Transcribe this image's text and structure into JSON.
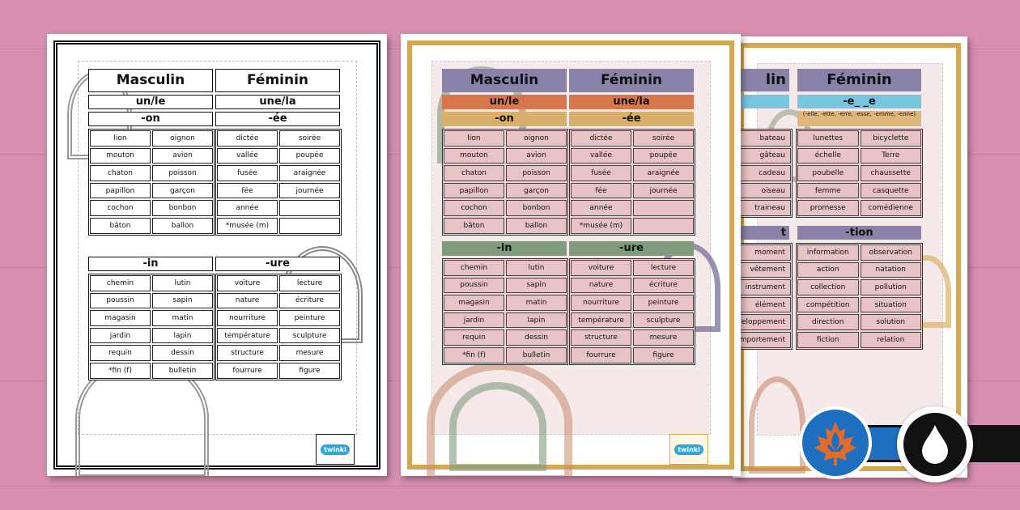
{
  "headers": {
    "masculin": "Masculin",
    "feminin": "Féminin",
    "un_le": "un/le",
    "une_la": "une/la"
  },
  "sections": {
    "on": {
      "title": "-on",
      "rows": [
        [
          "lion",
          "oignon"
        ],
        [
          "mouton",
          "avion"
        ],
        [
          "chaton",
          "poisson"
        ],
        [
          "papillon",
          "garçon"
        ],
        [
          "cochon",
          "bonbon"
        ],
        [
          "bâton",
          "ballon"
        ]
      ]
    },
    "ee": {
      "title": "-ée",
      "rows": [
        [
          "dictée",
          "soirée"
        ],
        [
          "vallée",
          "poupée"
        ],
        [
          "fusée",
          "araignée"
        ],
        [
          "fée",
          "journée"
        ],
        [
          "année",
          ""
        ],
        [
          "*musée (m)",
          ""
        ]
      ]
    },
    "in": {
      "title": "-in",
      "rows": [
        [
          "chemin",
          "lutin"
        ],
        [
          "poussin",
          "sapin"
        ],
        [
          "magasin",
          "matin"
        ],
        [
          "jardin",
          "lapin"
        ],
        [
          "requin",
          "dessin"
        ],
        [
          "*fin (f)",
          "bulletin"
        ]
      ]
    },
    "ure": {
      "title": "-ure",
      "rows": [
        [
          "voiture",
          "lecture"
        ],
        [
          "nature",
          "écriture"
        ],
        [
          "nourriture",
          "peinture"
        ],
        [
          "température",
          "sculpture"
        ],
        [
          "structure",
          "mesure"
        ],
        [
          "fourrure",
          "figure"
        ]
      ]
    }
  },
  "third_sheet": {
    "masc_header_partial": "lin",
    "fem_header": "Féminin",
    "e_title": "-e_ _e",
    "e_subtitle": "(-elle, -ette, -erre, -esse, -emme, -enne)",
    "e_rows": [
      [
        "lunettes",
        "bicyclette"
      ],
      [
        "échelle",
        "Terre"
      ],
      [
        "poubelle",
        "chaussette"
      ],
      [
        "femme",
        "casquette"
      ],
      [
        "promesse",
        "comédienne"
      ]
    ],
    "eau_partial": [
      "bateau",
      "gâteau",
      "cadeau",
      "oiseau",
      "traineau"
    ],
    "ent_title_partial": "t",
    "ent_partial": [
      "moment",
      "vêtement",
      "instrument",
      "élément",
      "développement",
      "comportement"
    ],
    "tion_title": "-tion",
    "tion_rows": [
      [
        "information",
        "observation"
      ],
      [
        "action",
        "natation"
      ],
      [
        "collection",
        "pollution"
      ],
      [
        "compétition",
        "situation"
      ],
      [
        "direction",
        "solution"
      ],
      [
        "fiction",
        "relation"
      ]
    ]
  },
  "logo_text": "twinkl",
  "colors": {
    "background": "#d98fb0",
    "gold_frame": "#d4a850",
    "purple": "#8a82a8",
    "orange": "#d9764e",
    "tan": "#d8b06a",
    "green": "#7f9c7d",
    "blue": "#78c5e0",
    "cell_pink": "#e8c3c6",
    "badge_blue": "#1f6fc0",
    "badge_orange": "#e06b2a"
  },
  "icons": [
    "maple-leaf-fleur-de-lis-icon",
    "ink-drop-icon"
  ]
}
